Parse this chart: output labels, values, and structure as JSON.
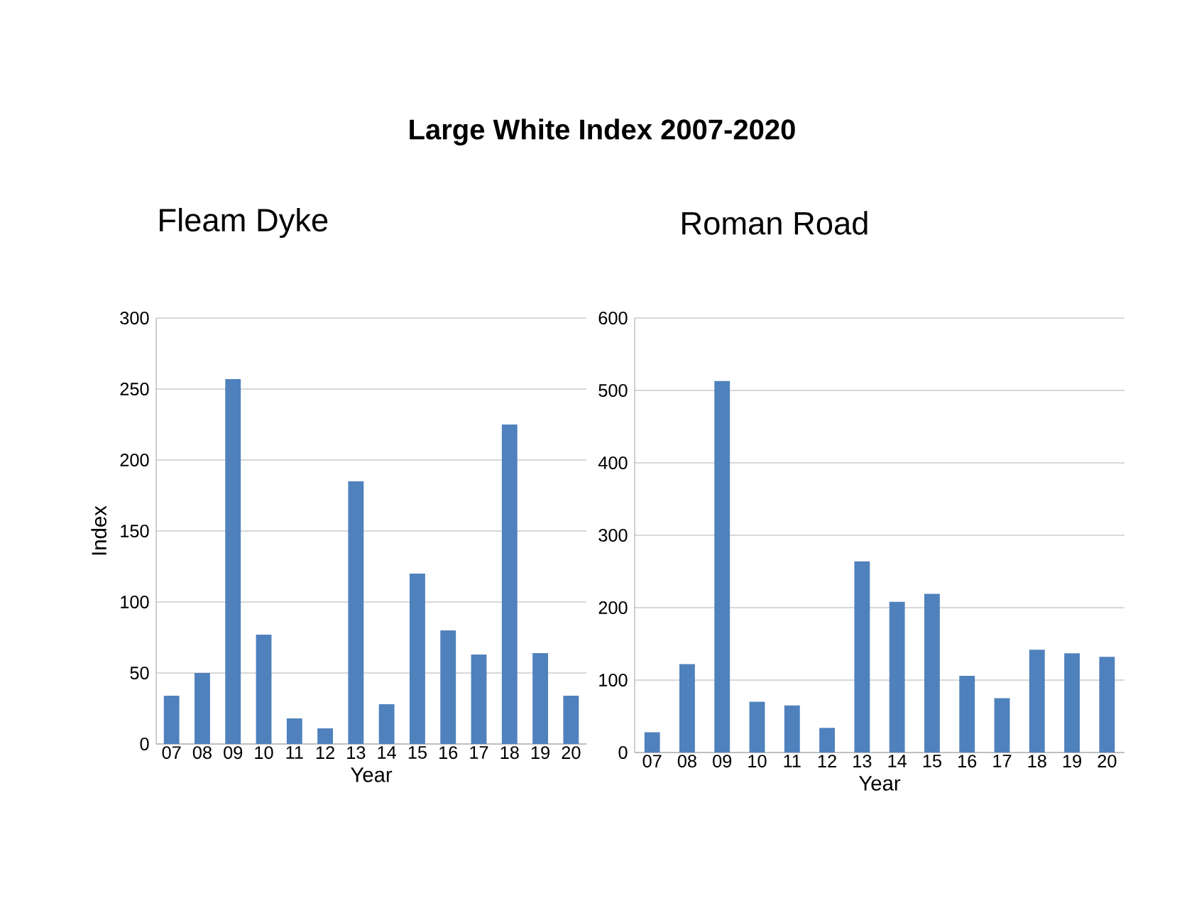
{
  "chart_data": [
    {
      "type": "bar",
      "title": "Large White Index 2007-2020",
      "subtitle": "Fleam Dyke",
      "xlabel": "Year",
      "ylabel": "Index",
      "categories": [
        "07",
        "08",
        "09",
        "10",
        "11",
        "12",
        "13",
        "14",
        "15",
        "16",
        "17",
        "18",
        "19",
        "20"
      ],
      "values": [
        34,
        50,
        257,
        77,
        18,
        11,
        185,
        28,
        120,
        80,
        63,
        225,
        64,
        34
      ],
      "color": "#4f81bd",
      "ylim": [
        0,
        300
      ],
      "yticks": [
        0,
        50,
        100,
        150,
        200,
        250,
        300
      ],
      "grid": "y"
    },
    {
      "type": "bar",
      "subtitle": "Roman Road",
      "xlabel": "Year",
      "categories": [
        "07",
        "08",
        "09",
        "10",
        "11",
        "12",
        "13",
        "14",
        "15",
        "16",
        "17",
        "18",
        "19",
        "20"
      ],
      "values": [
        28,
        122,
        513,
        70,
        65,
        34,
        264,
        208,
        219,
        106,
        75,
        142,
        137,
        132
      ],
      "color": "#4f81bd",
      "ylim": [
        0,
        600
      ],
      "yticks": [
        0,
        100,
        200,
        300,
        400,
        500,
        600
      ],
      "grid": "y"
    }
  ]
}
